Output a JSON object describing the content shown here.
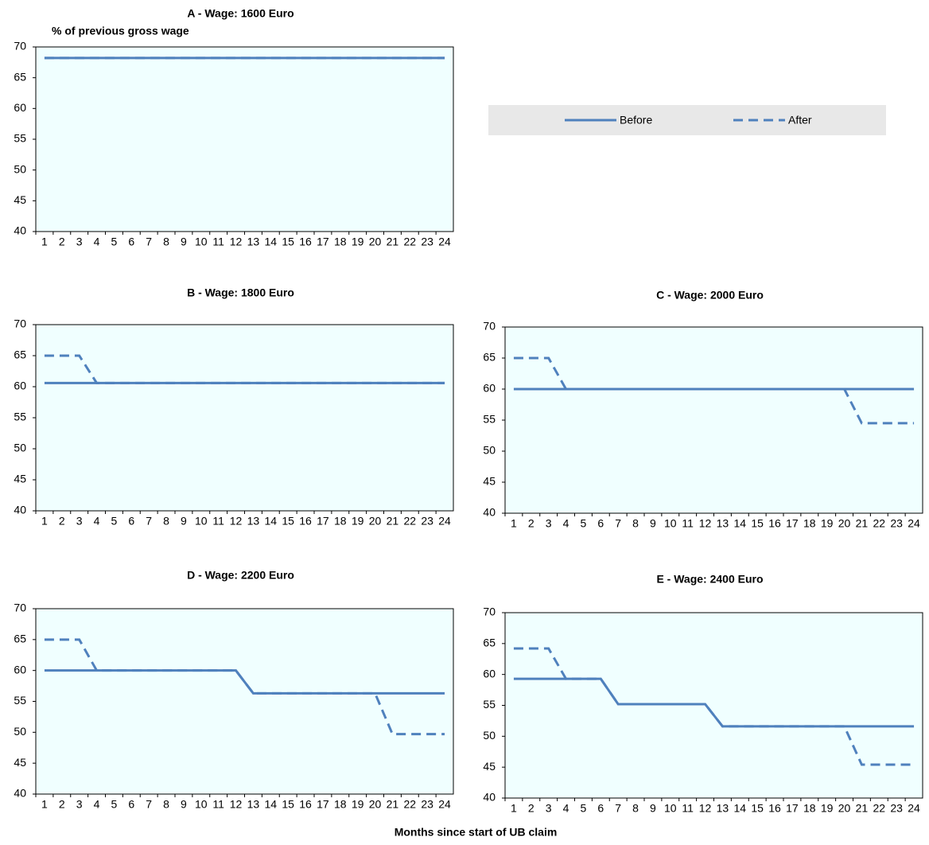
{
  "chart_data": [
    {
      "type": "line",
      "title": "A - Wage: 1600 Euro",
      "y_label": "% of previous gross wage",
      "categories": [
        "1",
        "2",
        "3",
        "4",
        "5",
        "6",
        "7",
        "8",
        "9",
        "10",
        "11",
        "12",
        "13",
        "14",
        "15",
        "16",
        "17",
        "18",
        "19",
        "20",
        "21",
        "22",
        "23",
        "24"
      ],
      "series": [
        {
          "name": "Before",
          "color": "#4f81bd",
          "values": [
            68.2,
            68.2,
            68.2,
            68.2,
            68.2,
            68.2,
            68.2,
            68.2,
            68.2,
            68.2,
            68.2,
            68.2,
            68.2,
            68.2,
            68.2,
            68.2,
            68.2,
            68.2,
            68.2,
            68.2,
            68.2,
            68.2,
            68.2,
            68.2
          ]
        },
        {
          "name": "After",
          "color": "#4f81bd",
          "dashed": true,
          "values": [
            68.2,
            68.2,
            68.2,
            68.2,
            68.2,
            68.2,
            68.2,
            68.2,
            68.2,
            68.2,
            68.2,
            68.2,
            68.2,
            68.2,
            68.2,
            68.2,
            68.2,
            68.2,
            68.2,
            68.2,
            68.2,
            68.2,
            68.2,
            68.2
          ]
        }
      ],
      "ylim": [
        40,
        70
      ],
      "yticks": [
        40,
        45,
        50,
        55,
        60,
        65,
        70
      ],
      "legend": "top-right"
    },
    {
      "type": "line",
      "title": "B - Wage: 1800 Euro",
      "categories": [
        "1",
        "2",
        "3",
        "4",
        "5",
        "6",
        "7",
        "8",
        "9",
        "10",
        "11",
        "12",
        "13",
        "14",
        "15",
        "16",
        "17",
        "18",
        "19",
        "20",
        "21",
        "22",
        "23",
        "24"
      ],
      "series": [
        {
          "name": "Before",
          "color": "#4f81bd",
          "values": [
            60.6,
            60.6,
            60.6,
            60.6,
            60.6,
            60.6,
            60.6,
            60.6,
            60.6,
            60.6,
            60.6,
            60.6,
            60.6,
            60.6,
            60.6,
            60.6,
            60.6,
            60.6,
            60.6,
            60.6,
            60.6,
            60.6,
            60.6,
            60.6
          ]
        },
        {
          "name": "After",
          "color": "#4f81bd",
          "dashed": true,
          "values": [
            65,
            65,
            65,
            60.6,
            60.6,
            60.6,
            60.6,
            60.6,
            60.6,
            60.6,
            60.6,
            60.6,
            60.6,
            60.6,
            60.6,
            60.6,
            60.6,
            60.6,
            60.6,
            60.6,
            60.6,
            60.6,
            60.6,
            60.6
          ]
        }
      ],
      "ylim": [
        40,
        70
      ],
      "yticks": [
        40,
        45,
        50,
        55,
        60,
        65,
        70
      ]
    },
    {
      "type": "line",
      "title": "C - Wage: 2000 Euro",
      "categories": [
        "1",
        "2",
        "3",
        "4",
        "5",
        "6",
        "7",
        "8",
        "9",
        "10",
        "11",
        "12",
        "13",
        "14",
        "15",
        "16",
        "17",
        "18",
        "19",
        "20",
        "21",
        "22",
        "23",
        "24"
      ],
      "series": [
        {
          "name": "Before",
          "color": "#4f81bd",
          "values": [
            60,
            60,
            60,
            60,
            60,
            60,
            60,
            60,
            60,
            60,
            60,
            60,
            60,
            60,
            60,
            60,
            60,
            60,
            60,
            60,
            60,
            60,
            60,
            60
          ]
        },
        {
          "name": "After",
          "color": "#4f81bd",
          "dashed": true,
          "values": [
            65,
            65,
            65,
            60,
            60,
            60,
            60,
            60,
            60,
            60,
            60,
            60,
            60,
            60,
            60,
            60,
            60,
            60,
            60,
            60,
            54.5,
            54.5,
            54.5,
            54.5
          ]
        }
      ],
      "ylim": [
        40,
        70
      ],
      "yticks": [
        40,
        45,
        50,
        55,
        60,
        65,
        70
      ]
    },
    {
      "type": "line",
      "title": "D - Wage: 2200 Euro",
      "categories": [
        "1",
        "2",
        "3",
        "4",
        "5",
        "6",
        "7",
        "8",
        "9",
        "10",
        "11",
        "12",
        "13",
        "14",
        "15",
        "16",
        "17",
        "18",
        "19",
        "20",
        "21",
        "22",
        "23",
        "24"
      ],
      "series": [
        {
          "name": "Before",
          "color": "#4f81bd",
          "values": [
            60,
            60,
            60,
            60,
            60,
            60,
            60,
            60,
            60,
            60,
            60,
            60,
            56.3,
            56.3,
            56.3,
            56.3,
            56.3,
            56.3,
            56.3,
            56.3,
            56.3,
            56.3,
            56.3,
            56.3
          ]
        },
        {
          "name": "After",
          "color": "#4f81bd",
          "dashed": true,
          "values": [
            65,
            65,
            65,
            60,
            60,
            60,
            60,
            60,
            60,
            60,
            60,
            60,
            56.3,
            56.3,
            56.3,
            56.3,
            56.3,
            56.3,
            56.3,
            56.3,
            49.7,
            49.7,
            49.7,
            49.7
          ]
        }
      ],
      "ylim": [
        40,
        70
      ],
      "yticks": [
        40,
        45,
        50,
        55,
        60,
        65,
        70
      ]
    },
    {
      "type": "line",
      "title": "E - Wage: 2400 Euro",
      "x_label": "Months since start of UB claim",
      "categories": [
        "1",
        "2",
        "3",
        "4",
        "5",
        "6",
        "7",
        "8",
        "9",
        "10",
        "11",
        "12",
        "13",
        "14",
        "15",
        "16",
        "17",
        "18",
        "19",
        "20",
        "21",
        "22",
        "23",
        "24"
      ],
      "series": [
        {
          "name": "Before",
          "color": "#4f81bd",
          "values": [
            59.3,
            59.3,
            59.3,
            59.3,
            59.3,
            59.3,
            55.2,
            55.2,
            55.2,
            55.2,
            55.2,
            55.2,
            51.6,
            51.6,
            51.6,
            51.6,
            51.6,
            51.6,
            51.6,
            51.6,
            51.6,
            51.6,
            51.6,
            51.6
          ]
        },
        {
          "name": "After",
          "color": "#4f81bd",
          "dashed": true,
          "values": [
            64.2,
            64.2,
            64.2,
            59.3,
            59.3,
            59.3,
            55.2,
            55.2,
            55.2,
            55.2,
            55.2,
            55.2,
            51.6,
            51.6,
            51.6,
            51.6,
            51.6,
            51.6,
            51.6,
            51.6,
            45.4,
            45.4,
            45.4,
            45.4
          ]
        }
      ],
      "ylim": [
        40,
        70
      ],
      "yticks": [
        40,
        45,
        50,
        55,
        60,
        65,
        70
      ]
    }
  ]
}
